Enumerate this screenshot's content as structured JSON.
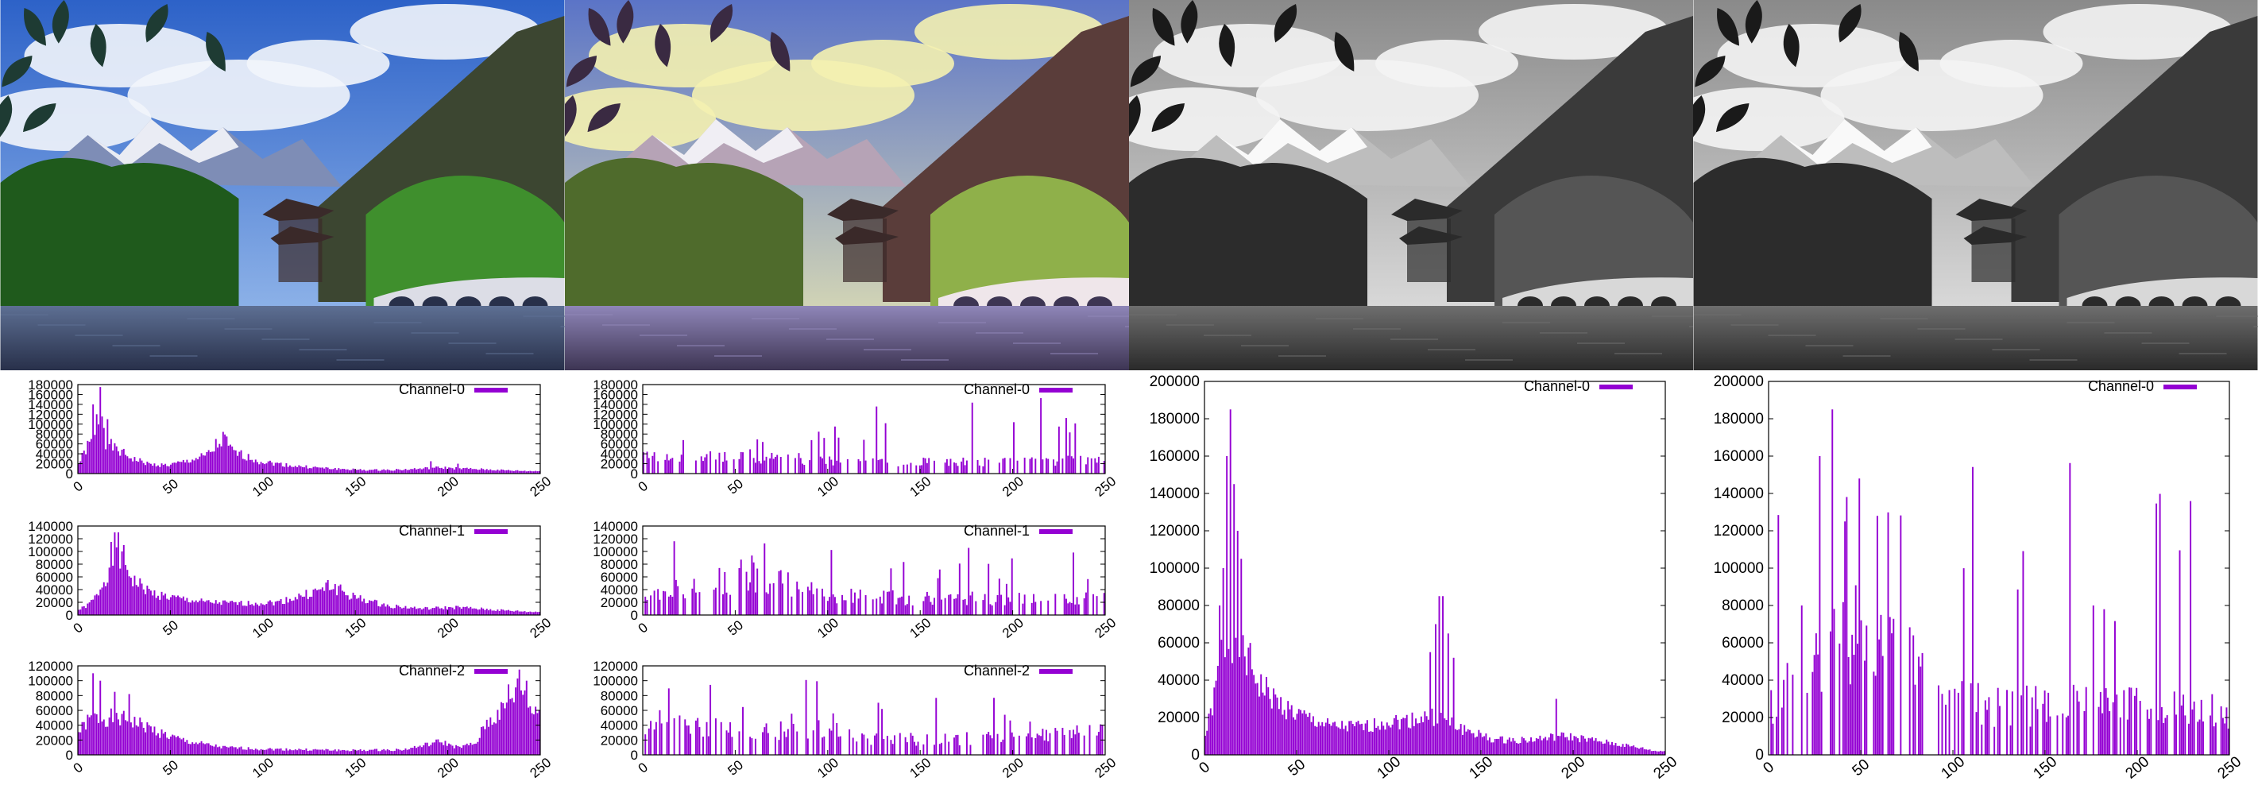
{
  "images": [
    {
      "name": "original-color-photo",
      "variant": "color"
    },
    {
      "name": "equalized-color-photo",
      "variant": "color-equalized"
    },
    {
      "name": "grayscale-photo",
      "variant": "gray"
    },
    {
      "name": "equalized-grayscale-photo",
      "variant": "gray-equalized"
    }
  ],
  "colors": {
    "bar": "#9400d3",
    "axis": "#000000",
    "background": "#ffffff"
  },
  "chart_data": [
    {
      "type": "bar",
      "panel": "original-color",
      "title": "",
      "xlabel": "",
      "ylabel": "",
      "xlim": [
        0,
        250
      ],
      "xticks": [
        0,
        50,
        100,
        150,
        200,
        250
      ],
      "charts": [
        {
          "series_name": "Channel-0",
          "ylim": [
            0,
            180000
          ],
          "yticks": [
            0,
            20000,
            40000,
            60000,
            80000,
            100000,
            120000,
            140000,
            160000,
            180000
          ],
          "anchors": [
            [
              0,
              20000
            ],
            [
              5,
              55000
            ],
            [
              10,
              72000
            ],
            [
              12,
              160000
            ],
            [
              15,
              65000
            ],
            [
              20,
              50000
            ],
            [
              30,
              30000
            ],
            [
              40,
              18000
            ],
            [
              50,
              17000
            ],
            [
              60,
              25000
            ],
            [
              70,
              35000
            ],
            [
              75,
              48000
            ],
            [
              80,
              70000
            ],
            [
              85,
              45000
            ],
            [
              90,
              38000
            ],
            [
              100,
              25000
            ],
            [
              120,
              15000
            ],
            [
              140,
              10000
            ],
            [
              160,
              7000
            ],
            [
              180,
              8000
            ],
            [
              200,
              12000
            ],
            [
              220,
              9000
            ],
            [
              240,
              6000
            ],
            [
              250,
              5000
            ]
          ],
          "spikes": [
            [
              8,
              140000
            ],
            [
              12,
              175000
            ],
            [
              10,
              120000
            ],
            [
              16,
              110000
            ],
            [
              76,
              70000
            ],
            [
              82,
              75000
            ],
            [
              78,
              60000
            ],
            [
              195,
              25000
            ],
            [
              210,
              20000
            ]
          ]
        },
        {
          "series_name": "Channel-1",
          "ylim": [
            0,
            140000
          ],
          "yticks": [
            0,
            20000,
            40000,
            60000,
            80000,
            100000,
            120000,
            140000
          ],
          "anchors": [
            [
              0,
              8000
            ],
            [
              5,
              15000
            ],
            [
              10,
              30000
            ],
            [
              15,
              60000
            ],
            [
              20,
              95000
            ],
            [
              25,
              85000
            ],
            [
              30,
              55000
            ],
            [
              40,
              35000
            ],
            [
              50,
              28000
            ],
            [
              70,
              20000
            ],
            [
              90,
              18000
            ],
            [
              110,
              20000
            ],
            [
              130,
              35000
            ],
            [
              140,
              45000
            ],
            [
              150,
              30000
            ],
            [
              170,
              15000
            ],
            [
              190,
              10000
            ],
            [
              210,
              12000
            ],
            [
              230,
              8000
            ],
            [
              250,
              5000
            ]
          ],
          "spikes": [
            [
              20,
              130000
            ],
            [
              22,
              130000
            ],
            [
              25,
              110000
            ],
            [
              18,
              115000
            ],
            [
              138,
              55000
            ],
            [
              145,
              48000
            ],
            [
              130,
              40000
            ]
          ]
        },
        {
          "series_name": "Channel-2",
          "ylim": [
            0,
            120000
          ],
          "yticks": [
            0,
            20000,
            40000,
            60000,
            80000,
            100000,
            120000
          ],
          "anchors": [
            [
              0,
              30000
            ],
            [
              5,
              45000
            ],
            [
              10,
              50000
            ],
            [
              20,
              50000
            ],
            [
              30,
              45000
            ],
            [
              40,
              35000
            ],
            [
              50,
              25000
            ],
            [
              60,
              18000
            ],
            [
              70,
              14000
            ],
            [
              80,
              10000
            ],
            [
              100,
              8000
            ],
            [
              150,
              6000
            ],
            [
              180,
              7000
            ],
            [
              190,
              12000
            ],
            [
              200,
              18000
            ],
            [
              210,
              10000
            ],
            [
              220,
              15000
            ],
            [
              225,
              40000
            ],
            [
              235,
              60000
            ],
            [
              240,
              80000
            ],
            [
              245,
              90000
            ],
            [
              250,
              60000
            ]
          ],
          "spikes": [
            [
              8,
              110000
            ],
            [
              12,
              100000
            ],
            [
              20,
              85000
            ],
            [
              28,
              82000
            ],
            [
              244,
              115000
            ],
            [
              248,
              100000
            ],
            [
              238,
              95000
            ]
          ]
        }
      ]
    },
    {
      "type": "bar",
      "panel": "equalized-color",
      "title": "",
      "xlabel": "",
      "ylabel": "",
      "xlim": [
        0,
        250
      ],
      "xticks": [
        0,
        50,
        100,
        150,
        200,
        250
      ],
      "charts": [
        {
          "series_name": "Channel-0",
          "ylim": [
            0,
            180000
          ],
          "yticks": [
            0,
            20000,
            40000,
            60000,
            80000,
            100000,
            120000,
            140000,
            160000,
            180000
          ],
          "anchors": [
            [
              0,
              30000
            ],
            [
              50,
              35000
            ],
            [
              100,
              25000
            ],
            [
              150,
              22000
            ],
            [
              200,
              22000
            ],
            [
              250,
              25000
            ]
          ],
          "sparse": true,
          "spike_max": 175000,
          "seed": 3
        },
        {
          "series_name": "Channel-1",
          "ylim": [
            0,
            140000
          ],
          "yticks": [
            0,
            20000,
            40000,
            60000,
            80000,
            100000,
            120000,
            140000
          ],
          "anchors": [
            [
              0,
              35000
            ],
            [
              40,
              45000
            ],
            [
              60,
              60000
            ],
            [
              100,
              30000
            ],
            [
              150,
              25000
            ],
            [
              200,
              25000
            ],
            [
              250,
              25000
            ]
          ],
          "sparse": true,
          "spike_max": 135000,
          "seed": 7
        },
        {
          "series_name": "Channel-2",
          "ylim": [
            0,
            120000
          ],
          "yticks": [
            0,
            20000,
            40000,
            60000,
            80000,
            100000,
            120000
          ],
          "anchors": [
            [
              0,
              40000
            ],
            [
              50,
              35000
            ],
            [
              100,
              25000
            ],
            [
              150,
              20000
            ],
            [
              200,
              22000
            ],
            [
              250,
              30000
            ]
          ],
          "sparse": true,
          "spike_max": 115000,
          "seed": 11
        }
      ]
    },
    {
      "type": "bar",
      "panel": "grayscale",
      "title": "",
      "xlabel": "",
      "ylabel": "",
      "xlim": [
        0,
        250
      ],
      "xticks": [
        0,
        50,
        100,
        150,
        200,
        250
      ],
      "charts": [
        {
          "series_name": "Channel-0",
          "ylim": [
            0,
            200000
          ],
          "yticks": [
            0,
            20000,
            40000,
            60000,
            80000,
            100000,
            120000,
            140000,
            160000,
            180000,
            200000
          ],
          "anchors": [
            [
              0,
              10000
            ],
            [
              5,
              30000
            ],
            [
              10,
              60000
            ],
            [
              15,
              65000
            ],
            [
              20,
              58000
            ],
            [
              25,
              48000
            ],
            [
              30,
              38000
            ],
            [
              40,
              28000
            ],
            [
              50,
              22000
            ],
            [
              70,
              15000
            ],
            [
              90,
              15000
            ],
            [
              100,
              18000
            ],
            [
              110,
              18000
            ],
            [
              120,
              20000
            ],
            [
              130,
              20000
            ],
            [
              140,
              15000
            ],
            [
              160,
              8000
            ],
            [
              180,
              8000
            ],
            [
              200,
              10000
            ],
            [
              220,
              7000
            ],
            [
              240,
              4000
            ],
            [
              250,
              2000
            ]
          ],
          "spikes": [
            [
              8,
              80000
            ],
            [
              10,
              100000
            ],
            [
              12,
              160000
            ],
            [
              14,
              185000
            ],
            [
              16,
              145000
            ],
            [
              18,
              120000
            ],
            [
              20,
              105000
            ],
            [
              125,
              55000
            ],
            [
              128,
              70000
            ],
            [
              130,
              85000
            ],
            [
              132,
              85000
            ],
            [
              135,
              65000
            ],
            [
              138,
              52000
            ],
            [
              195,
              30000
            ]
          ]
        }
      ]
    },
    {
      "type": "bar",
      "panel": "equalized-grayscale",
      "title": "",
      "xlabel": "",
      "ylabel": "",
      "xlim": [
        0,
        250
      ],
      "xticks": [
        0,
        50,
        100,
        150,
        200,
        250
      ],
      "charts": [
        {
          "series_name": "Channel-0",
          "ylim": [
            0,
            200000
          ],
          "yticks": [
            0,
            20000,
            40000,
            60000,
            80000,
            100000,
            120000,
            140000,
            160000,
            180000,
            200000
          ],
          "anchors": [
            [
              0,
              25000
            ],
            [
              20,
              45000
            ],
            [
              40,
              55000
            ],
            [
              60,
              55000
            ],
            [
              80,
              45000
            ],
            [
              100,
              30000
            ],
            [
              120,
              25000
            ],
            [
              150,
              25000
            ],
            [
              170,
              30000
            ],
            [
              190,
              28000
            ],
            [
              210,
              25000
            ],
            [
              230,
              22000
            ],
            [
              250,
              22000
            ]
          ],
          "sparse": true,
          "spike_max": 185000,
          "seed": 5,
          "spikes": [
            [
              35,
              185000
            ],
            [
              28,
              160000
            ],
            [
              50,
              148000
            ],
            [
              42,
              125000
            ],
            [
              60,
              128000
            ],
            [
              18,
              80000
            ],
            [
              180,
              80000
            ],
            [
              186,
              78000
            ]
          ]
        }
      ]
    }
  ]
}
